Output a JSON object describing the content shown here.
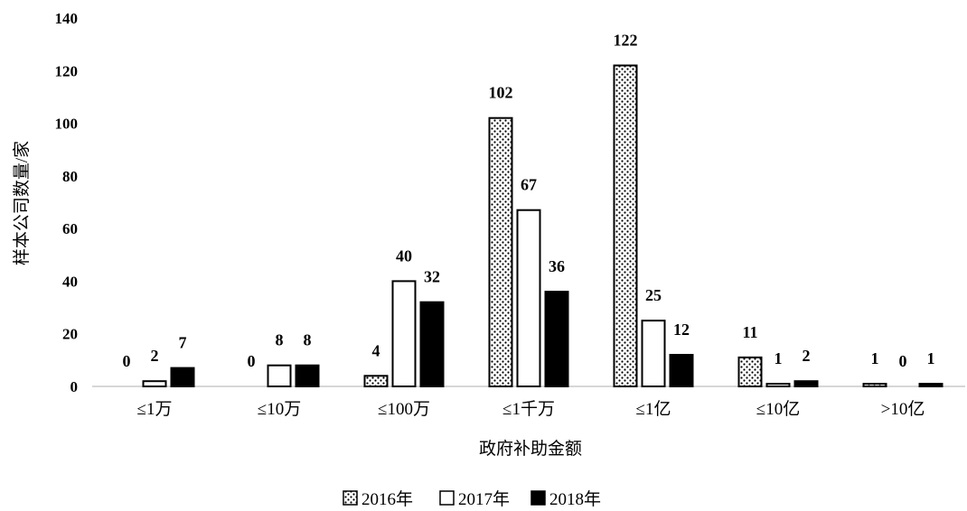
{
  "chart_data": {
    "type": "bar",
    "categories": [
      "≤1万",
      "≤10万",
      "≤100万",
      "≤1千万",
      "≤1亿",
      "≤10亿",
      ">10亿"
    ],
    "series": [
      {
        "name": "2016年",
        "values": [
          0,
          0,
          4,
          102,
          122,
          11,
          1
        ],
        "fill": "dotted"
      },
      {
        "name": "2017年",
        "values": [
          2,
          8,
          40,
          67,
          25,
          1,
          0
        ],
        "fill": "#ffffff"
      },
      {
        "name": "2018年",
        "values": [
          7,
          8,
          32,
          36,
          12,
          2,
          1
        ],
        "fill": "#000000"
      }
    ],
    "xlabel": "政府补助金额",
    "ylabel": "样本公司数量/家",
    "ylim": [
      0,
      140
    ],
    "yticks": [
      0,
      20,
      40,
      60,
      80,
      100,
      120,
      140
    ],
    "grid": false,
    "legend": "bottom",
    "data_labels": true,
    "bar_outline": "#000000",
    "axis_color": "#bfbfbf"
  }
}
